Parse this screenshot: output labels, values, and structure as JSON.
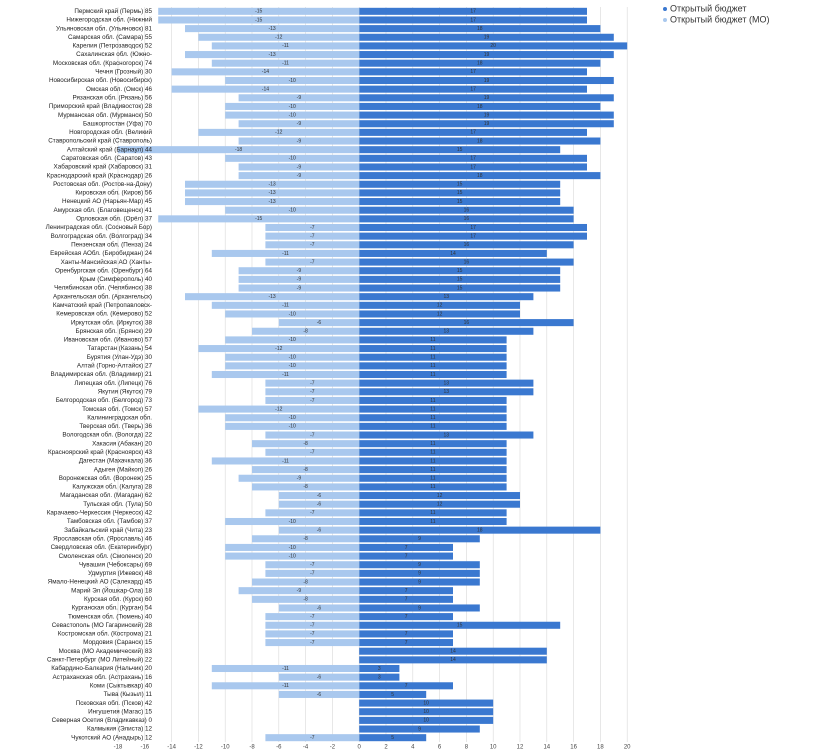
{
  "chart_data": {
    "type": "diverging-bar",
    "categories": [
      "Пермский край (Пермь) 85",
      "Нижегородская обл. (Нижний",
      "Ульяновская обл. (Ульяновск) 81",
      "Самарская обл. (Самара) 55",
      "Карелия (Петрозаводск) 52",
      "Сахалинская обл. (Южно-",
      "Московская обл. (Красногорск) 74",
      "Чечня (Грозный) 30",
      "Новосибирская обл. (Новосибирск)",
      "Омская обл. (Омск) 46",
      "Рязанская обл. (Рязань) 56",
      "Приморский край (Владивосток) 28",
      "Мурманская обл. (Мурманск) 50",
      "Башкортостан (Уфа) 70",
      "Новгородская обл. (Великий",
      "Ставропольский край (Ставрополь)",
      "Алтайский край (Барнаул) 44",
      "Саратовская обл. (Саратов) 43",
      "Хабаровский край (Хабаровск) 31",
      "Краснодарский край (Краснодар) 26",
      "Ростовская обл. (Ростов-на-Дону)",
      "Кировская обл. (Киров) 56",
      "Ненецкий АО (Нарьян-Мар) 45",
      "Амурская обл. (Благовещенск) 41",
      "Орловская обл. (Орёл) 37",
      "Ленинградская обл. (Сосновый Бор)",
      "Волгоградская обл. (Волгоград) 34",
      "Пензенская обл. (Пенза) 24",
      "Еврейская АОбл. (Биробиджан) 24",
      "Ханты-Мансийская АО (Ханты-",
      "Оренбургская обл. (Оренбург) 64",
      "Крым (Симферополь) 40",
      "Челябинская обл. (Челябинск) 38",
      "Архангельская обл. (Архангельск)",
      "Камчатский край (Петропавловск-",
      "Кемеровская обл. (Кемерово) 52",
      "Иркутская обл. (Иркутск) 38",
      "Брянская обл. (Брянск) 29",
      "Ивановская обл. (Иваново) 57",
      "Татарстан (Казань) 54",
      "Бурятия (Улан-Удэ) 30",
      "Алтай (Горно-Алтайск) 27",
      "Владимирская обл. (Владимир) 21",
      "Липецкая обл. (Липецк) 76",
      "Якутия (Якутск) 79",
      "Белгородская обл. (Белгород) 73",
      "Томская обл. (Томск) 57",
      "Калининградская обл.",
      "Тверская обл. (Тверь) 36",
      "Вологодская обл. (Вологда) 22",
      "Хакасия (Абакан) 20",
      "Красноярский край (Красноярск) 43",
      "Дагестан (Махачкала) 36",
      "Адыгея (Майкоп) 26",
      "Воронежская обл. (Воронеж) 25",
      "Калужская обл. (Калуга) 28",
      "Магаданская обл. (Магадан) 62",
      "Тульская обл. (Тула) 50",
      "Карачаево-Черкессия (Черкесск) 42",
      "Тамбовская обл. (Тамбов) 37",
      "Забайкальский край (Чита) 23",
      "Ярославская обл. (Ярославль) 46",
      "Свердловская обл. (Екатеринбург)",
      "Смоленская обл. (Смоленск) 20",
      "Чувашия (Чебоксары) 69",
      "Удмуртия (Ижевск) 48",
      "Ямало-Ненецкий АО (Салехард) 45",
      "Марий Эл (Йошкар-Ола) 18",
      "Курская обл. (Курск) 60",
      "Курганская обл. (Курган) 54",
      "Тюменская обл. (Тюмень) 40",
      "Севастополь (МО Гагаринский) 28",
      "Костромская обл. (Кострома) 21",
      "Мордовия (Саранск) 15",
      "Москва (МО Академический) 83",
      "Санкт-Петербург (МО Литейный) 22",
      "Кабардино-Балкария (Нальчик) 20",
      "Астраханская обл. (Астрахань) 16",
      "Коми (Сыктывкар) 40",
      "Тыва (Кызыл) 11",
      "Псковская обл. (Псков) 42",
      "Ингушетия (Магас) 15",
      "Северная Осетия (Владикавказ) 0",
      "Калмыкия (Элиста) 12",
      "Чукотский АО (Анадырь) 12"
    ],
    "series": [
      {
        "name": "Открытый бюджет",
        "color": "#3a78d0",
        "values": [
          17,
          17,
          18,
          19,
          20,
          19,
          18,
          17,
          19,
          17,
          19,
          18,
          19,
          19,
          17,
          18,
          15,
          17,
          17,
          18,
          15,
          15,
          15,
          16,
          16,
          17,
          17,
          16,
          14,
          16,
          15,
          15,
          15,
          13,
          12,
          12,
          16,
          13,
          11,
          11,
          11,
          11,
          11,
          13,
          13,
          11,
          11,
          11,
          11,
          13,
          11,
          11,
          11,
          11,
          11,
          11,
          12,
          12,
          11,
          11,
          18,
          9,
          7,
          7,
          9,
          9,
          9,
          7,
          7,
          9,
          7,
          15,
          7,
          7,
          14,
          14,
          3,
          3,
          7,
          5,
          10,
          10,
          10,
          9,
          5
        ]
      },
      {
        "name": "Открытый бюджет (МО)",
        "color": "#a9c8ee",
        "values": [
          -15,
          -15,
          -13,
          -12,
          -11,
          -13,
          -11,
          -14,
          -10,
          -14,
          -9,
          -10,
          -10,
          -9,
          -12,
          -9,
          -18,
          -10,
          -9,
          -9,
          -13,
          -13,
          -13,
          -10,
          -15,
          -7,
          -7,
          -7,
          -11,
          -7,
          -9,
          -9,
          -9,
          -13,
          -11,
          -10,
          -6,
          -8,
          -10,
          -12,
          -10,
          -10,
          -11,
          -7,
          -7,
          -7,
          -12,
          -10,
          -10,
          -7,
          -8,
          -7,
          -11,
          -8,
          -9,
          -8,
          -6,
          -6,
          -7,
          -10,
          -6,
          -8,
          -10,
          -10,
          -7,
          -7,
          -8,
          -9,
          -8,
          -6,
          -7,
          -7,
          -7,
          -7,
          0,
          0,
          -11,
          -6,
          -11,
          -6,
          0,
          0,
          0,
          0,
          -7
        ]
      }
    ],
    "xlim": [
      -18,
      22
    ],
    "xticks": [
      -18,
      -16,
      -14,
      -12,
      -10,
      -8,
      -6,
      -4,
      -2,
      0,
      2,
      4,
      6,
      8,
      10,
      12,
      14,
      16,
      18,
      20
    ],
    "grid": true,
    "legend": "top-right"
  }
}
